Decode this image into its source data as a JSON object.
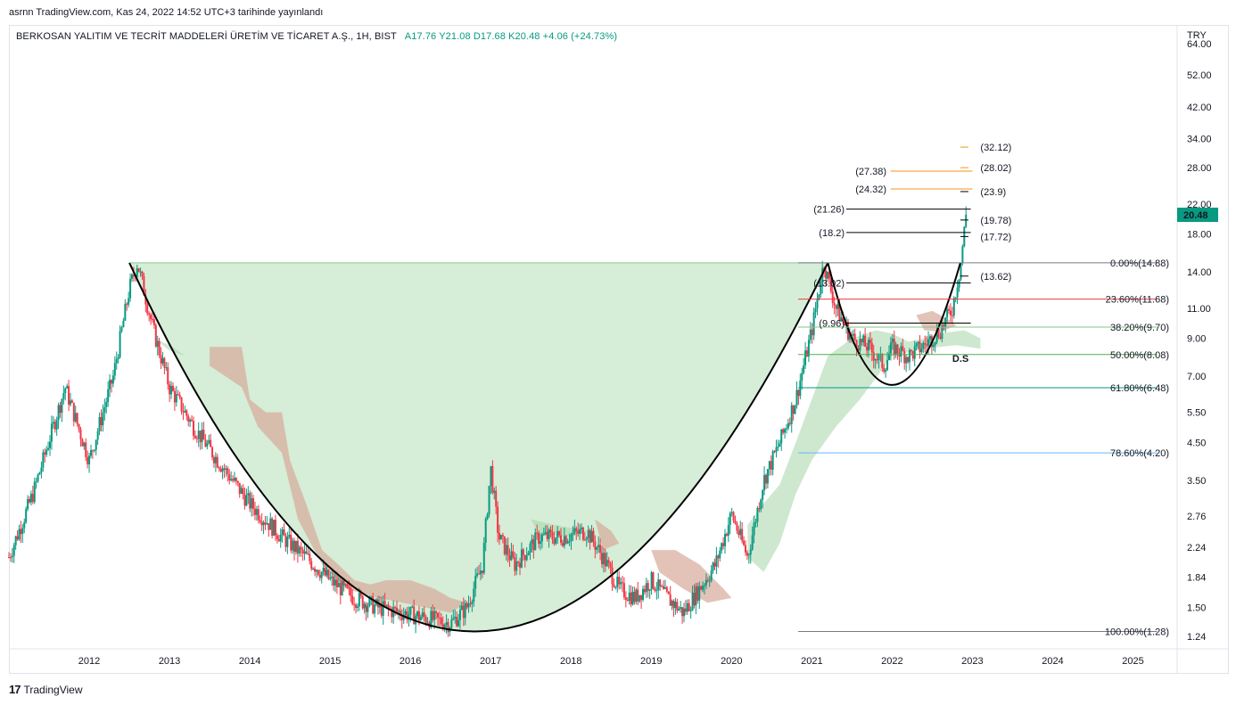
{
  "header": {
    "publish_line": "asrnn TradingView.com, Kas 24, 2022 14:52 UTC+3 tarihinde yayınlandı"
  },
  "legend": {
    "symbol": "BERKOSAN YALITIM VE TECRİT MADDELERİ ÜRETİM VE TİCARET A.Ş., 1H, BIST",
    "ohlc": "A17.76  Y21.08  D17.68  K20.48  +4.06 (+24.73%)"
  },
  "footer": {
    "brand": "TradingView",
    "logo": "17"
  },
  "colors": {
    "cup_fill": "#a5d6a7",
    "curve": "#000000",
    "up": "#089981",
    "down": "#f23645",
    "cloud_bull": "#a5d6a7",
    "cloud_bear": "#d7a99a",
    "price_label_bg": "#089981",
    "target_orange": "#f7931a"
  },
  "chart_data": {
    "type": "candlestick",
    "symbol": "BERKOSAN",
    "interval": "1H",
    "y_scale": "log",
    "currency": "TRY",
    "x_ticks": [
      "2012",
      "2013",
      "2014",
      "2015",
      "2016",
      "2017",
      "2018",
      "2019",
      "2020",
      "2021",
      "2022",
      "2023",
      "2024",
      "2025"
    ],
    "y_ticks": [
      64.0,
      52.0,
      42.0,
      34.0,
      28.0,
      22.0,
      18.0,
      14.0,
      11.0,
      9.0,
      7.0,
      5.5,
      4.5,
      3.5,
      2.76,
      2.24,
      1.84,
      1.5,
      1.24
    ],
    "last_price": {
      "value": 20.48,
      "label": "20.48"
    },
    "fib_levels": [
      {
        "label": "0.00%(14.88)",
        "value": 14.88,
        "color": "#787b86"
      },
      {
        "label": "23.60%(11.68)",
        "value": 11.68,
        "color": "#f23645"
      },
      {
        "label": "38.20%(9.70)",
        "value": 9.7,
        "color": "#81c784"
      },
      {
        "label": "50.00%(8.08)",
        "value": 8.08,
        "color": "#4caf50"
      },
      {
        "label": "61.80%(6.48)",
        "value": 6.48,
        "color": "#009688"
      },
      {
        "label": "78.60%(4.20)",
        "value": 4.2,
        "color": "#64b5f6"
      },
      {
        "label": "100.00%(1.28)",
        "value": 1.28,
        "color": "#787b86"
      }
    ],
    "black_levels": [
      {
        "label": "(21.26)",
        "value": 21.26,
        "side": "left"
      },
      {
        "label": "(18.2)",
        "value": 18.2,
        "side": "left"
      },
      {
        "label": "(13.02)",
        "value": 13.02,
        "side": "left"
      },
      {
        "label": "(9.96)",
        "value": 9.96,
        "side": "left"
      },
      {
        "label": "(23.9)",
        "value": 23.9,
        "side": "right"
      },
      {
        "label": "(19.78)",
        "value": 19.78,
        "side": "right"
      },
      {
        "label": "(17.72)",
        "value": 17.72,
        "side": "right"
      },
      {
        "label": "(13.62)",
        "value": 13.62,
        "side": "right"
      }
    ],
    "orange_levels": [
      {
        "label": "(32.12)",
        "value": 32.12,
        "side": "right"
      },
      {
        "label": "(28.02)",
        "value": 28.02,
        "side": "right"
      },
      {
        "label": "(27.38)",
        "value": 27.38,
        "side": "left"
      },
      {
        "label": "(24.32)",
        "value": 24.32,
        "side": "left"
      }
    ],
    "annotations": [
      {
        "text": "D.S",
        "x": 2022.75,
        "y": 7.7
      }
    ],
    "cup": {
      "left": {
        "x": 2012.5,
        "y": 14.88
      },
      "bottom": {
        "x": 2016.8,
        "y": 1.28
      },
      "right": {
        "x": 2021.2,
        "y": 14.88
      }
    },
    "handle": {
      "left": {
        "x": 2021.2,
        "y": 14.88
      },
      "bottom": {
        "x": 2022.0,
        "y": 6.6
      },
      "right": {
        "x": 2022.85,
        "y": 14.88
      }
    },
    "price_path": [
      [
        2011.0,
        2.1
      ],
      [
        2011.3,
        3.2
      ],
      [
        2011.7,
        6.5
      ],
      [
        2012.0,
        4.0
      ],
      [
        2012.3,
        7.0
      ],
      [
        2012.5,
        12.5
      ],
      [
        2012.6,
        14.88
      ],
      [
        2012.8,
        9.5
      ],
      [
        2013.0,
        6.5
      ],
      [
        2013.3,
        5.0
      ],
      [
        2013.6,
        4.0
      ],
      [
        2014.0,
        3.0
      ],
      [
        2014.4,
        2.4
      ],
      [
        2014.7,
        2.1
      ],
      [
        2015.0,
        1.8
      ],
      [
        2015.3,
        1.6
      ],
      [
        2015.6,
        1.5
      ],
      [
        2015.9,
        1.45
      ],
      [
        2016.2,
        1.4
      ],
      [
        2016.5,
        1.35
      ],
      [
        2016.7,
        1.5
      ],
      [
        2016.9,
        2.0
      ],
      [
        2017.0,
        3.8
      ],
      [
        2017.1,
        2.4
      ],
      [
        2017.3,
        2.0
      ],
      [
        2017.6,
        2.4
      ],
      [
        2017.9,
        2.4
      ],
      [
        2018.2,
        2.5
      ],
      [
        2018.4,
        2.1
      ],
      [
        2018.6,
        1.7
      ],
      [
        2018.8,
        1.6
      ],
      [
        2019.0,
        1.8
      ],
      [
        2019.2,
        1.6
      ],
      [
        2019.4,
        1.45
      ],
      [
        2019.6,
        1.7
      ],
      [
        2019.8,
        2.0
      ],
      [
        2020.0,
        2.8
      ],
      [
        2020.2,
        2.1
      ],
      [
        2020.4,
        3.5
      ],
      [
        2020.6,
        4.5
      ],
      [
        2020.8,
        6.0
      ],
      [
        2021.0,
        9.5
      ],
      [
        2021.15,
        14.88
      ],
      [
        2021.3,
        11.0
      ],
      [
        2021.5,
        9.0
      ],
      [
        2021.7,
        8.5
      ],
      [
        2021.9,
        7.5
      ],
      [
        2022.0,
        8.5
      ],
      [
        2022.2,
        8.0
      ],
      [
        2022.4,
        8.6
      ],
      [
        2022.6,
        9.5
      ],
      [
        2022.75,
        11.0
      ],
      [
        2022.85,
        14.5
      ],
      [
        2022.92,
        20.48
      ]
    ],
    "ichimoku_cloud": [
      {
        "kind": "bear",
        "points": [
          [
            2013.5,
            8.5
          ],
          [
            2013.9,
            8.5
          ],
          [
            2014.0,
            6.0
          ],
          [
            2014.2,
            5.5
          ],
          [
            2014.4,
            5.5
          ],
          [
            2014.5,
            4.0
          ],
          [
            2014.7,
            3.0
          ],
          [
            2014.9,
            2.2
          ],
          [
            2015.1,
            2.0
          ],
          [
            2015.3,
            1.8
          ],
          [
            2015.5,
            1.75
          ],
          [
            2015.7,
            1.8
          ],
          [
            2016.0,
            1.8
          ],
          [
            2016.3,
            1.7
          ],
          [
            2016.5,
            1.6
          ],
          [
            2016.7,
            1.55
          ],
          [
            2016.5,
            1.45
          ],
          [
            2016.2,
            1.5
          ],
          [
            2015.9,
            1.55
          ],
          [
            2015.6,
            1.6
          ],
          [
            2015.2,
            1.7
          ],
          [
            2014.9,
            2.0
          ],
          [
            2014.6,
            2.7
          ],
          [
            2014.4,
            4.2
          ],
          [
            2014.1,
            5.0
          ],
          [
            2013.9,
            6.5
          ],
          [
            2013.5,
            7.5
          ]
        ]
      },
      {
        "kind": "bull",
        "points": [
          [
            2012.8,
            9.0
          ],
          [
            2013.0,
            8.3
          ],
          [
            2013.2,
            8.0
          ],
          [
            2013.0,
            8.6
          ]
        ]
      },
      {
        "kind": "bull",
        "points": [
          [
            2017.5,
            2.7
          ],
          [
            2017.8,
            2.6
          ],
          [
            2018.2,
            2.5
          ],
          [
            2018.0,
            2.4
          ],
          [
            2017.6,
            2.45
          ]
        ]
      },
      {
        "kind": "bear",
        "points": [
          [
            2018.3,
            2.7
          ],
          [
            2018.5,
            2.5
          ],
          [
            2018.6,
            2.3
          ],
          [
            2018.4,
            2.2
          ]
        ]
      },
      {
        "kind": "bear",
        "points": [
          [
            2019.0,
            2.2
          ],
          [
            2019.3,
            2.2
          ],
          [
            2019.6,
            2.0
          ],
          [
            2019.9,
            1.7
          ],
          [
            2020.0,
            1.6
          ],
          [
            2019.7,
            1.55
          ],
          [
            2019.4,
            1.7
          ],
          [
            2019.1,
            1.9
          ]
        ]
      },
      {
        "kind": "bull",
        "points": [
          [
            2020.2,
            2.6
          ],
          [
            2020.4,
            3.0
          ],
          [
            2020.6,
            3.4
          ],
          [
            2020.8,
            4.5
          ],
          [
            2021.0,
            6.0
          ],
          [
            2021.2,
            8.0
          ],
          [
            2021.5,
            9.0
          ],
          [
            2021.8,
            9.5
          ],
          [
            2022.0,
            9.3
          ],
          [
            2022.2,
            8.8
          ],
          [
            2022.4,
            9.0
          ],
          [
            2022.6,
            9.3
          ],
          [
            2022.9,
            9.5
          ],
          [
            2023.1,
            9.0
          ],
          [
            2023.1,
            8.4
          ],
          [
            2022.8,
            8.6
          ],
          [
            2022.4,
            8.4
          ],
          [
            2022.0,
            8.0
          ],
          [
            2021.6,
            6.0
          ],
          [
            2021.3,
            5.0
          ],
          [
            2021.0,
            4.0
          ],
          [
            2020.8,
            3.2
          ],
          [
            2020.6,
            2.3
          ],
          [
            2020.4,
            1.9
          ],
          [
            2020.2,
            2.1
          ]
        ]
      },
      {
        "kind": "bear",
        "points": [
          [
            2022.3,
            10.5
          ],
          [
            2022.5,
            10.8
          ],
          [
            2022.7,
            10.2
          ],
          [
            2022.8,
            9.8
          ],
          [
            2022.6,
            9.4
          ],
          [
            2022.4,
            9.5
          ]
        ]
      }
    ],
    "x_range": [
      2011.0,
      2025.55
    ],
    "y_range": [
      1.14,
      72.0
    ]
  }
}
